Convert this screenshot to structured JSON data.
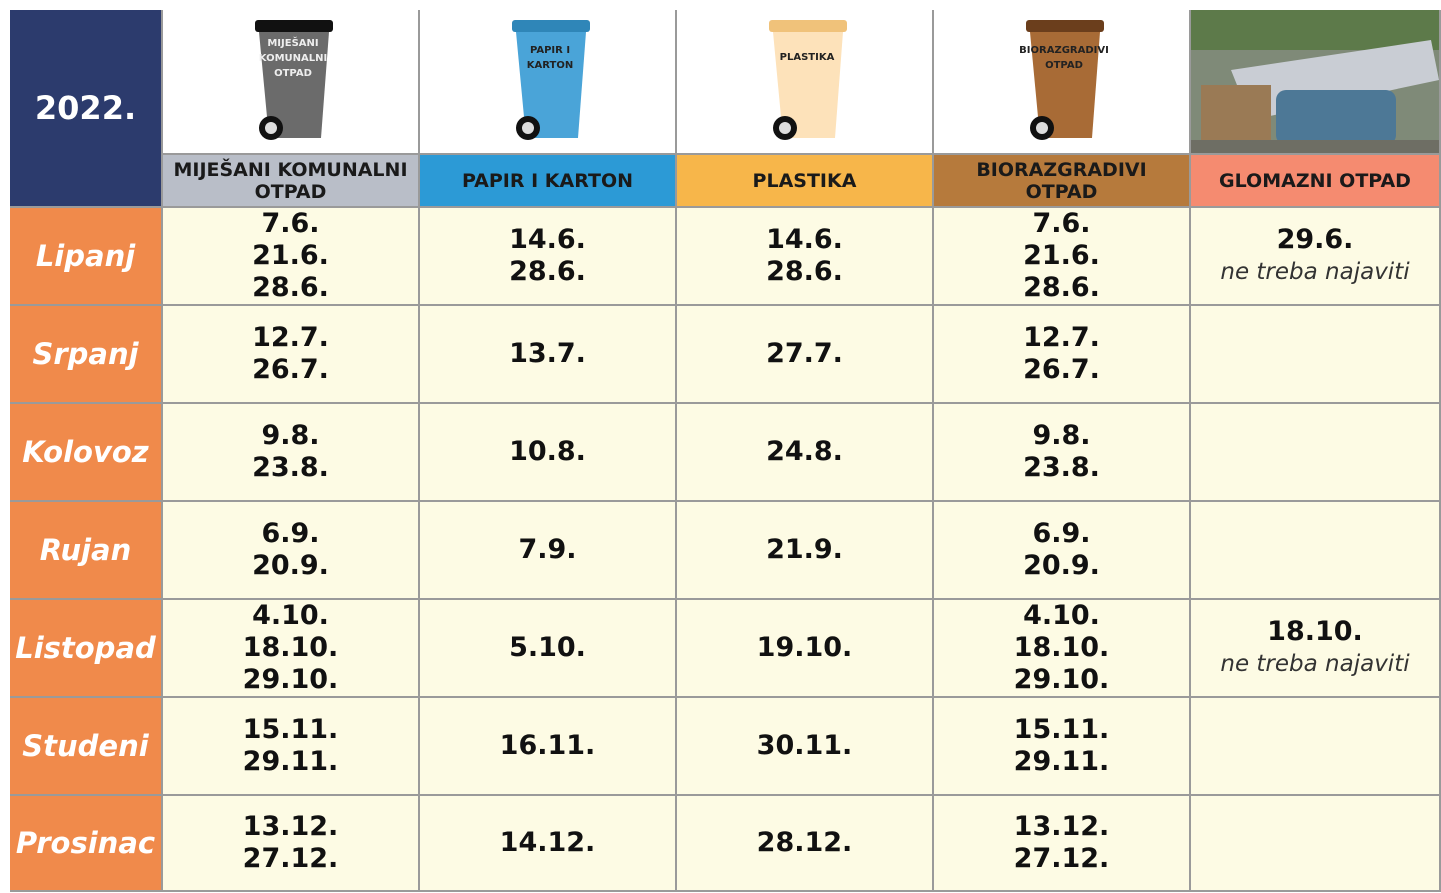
{
  "header": {
    "year": "2022."
  },
  "columns": [
    {
      "bin_label": [
        "MIJEŠANI",
        "KOMUNALNI",
        "OTPAD"
      ],
      "title": "MIJEŠANI KOMUNALNI OTPAD"
    },
    {
      "bin_label": [
        "PAPIR I",
        "KARTON"
      ],
      "title": "PAPIR I KARTON"
    },
    {
      "bin_label": [
        "PLASTIKA"
      ],
      "title": "PLASTIKA"
    },
    {
      "bin_label": [
        "BIORAZGRADIVI",
        "OTPAD"
      ],
      "title": "BIORAZGRADIVI OTPAD"
    },
    {
      "bin_label": null,
      "title": "GLOMAZNI OTPAD"
    }
  ],
  "rows": [
    {
      "month": "Lipanj",
      "cells": [
        [
          "7.6.",
          "21.6.",
          "28.6."
        ],
        [
          "14.6.",
          "28.6."
        ],
        [
          "14.6.",
          "28.6."
        ],
        [
          "7.6.",
          "21.6.",
          "28.6."
        ],
        {
          "date": "29.6.",
          "note": "ne treba najaviti"
        }
      ]
    },
    {
      "month": "Srpanj",
      "cells": [
        [
          "12.7.",
          "26.7."
        ],
        [
          "13.7."
        ],
        [
          "27.7."
        ],
        [
          "12.7.",
          "26.7."
        ],
        null
      ]
    },
    {
      "month": "Kolovoz",
      "cells": [
        [
          "9.8.",
          "23.8."
        ],
        [
          "10.8."
        ],
        [
          "24.8."
        ],
        [
          "9.8.",
          "23.8."
        ],
        null
      ]
    },
    {
      "month": "Rujan",
      "cells": [
        [
          "6.9.",
          "20.9."
        ],
        [
          "7.9."
        ],
        [
          "21.9."
        ],
        [
          "6.9.",
          "20.9."
        ],
        null
      ]
    },
    {
      "month": "Listopad",
      "cells": [
        [
          "4.10.",
          "18.10.",
          "29.10."
        ],
        [
          "5.10."
        ],
        [
          "19.10."
        ],
        [
          "4.10.",
          "18.10.",
          "29.10."
        ],
        {
          "date": "18.10.",
          "note": "ne treba najaviti"
        }
      ]
    },
    {
      "month": "Studeni",
      "cells": [
        [
          "15.11.",
          "29.11."
        ],
        [
          "16.11."
        ],
        [
          "30.11."
        ],
        [
          "15.11.",
          "29.11."
        ],
        null
      ]
    },
    {
      "month": "Prosinac",
      "cells": [
        [
          "13.12.",
          "27.12."
        ],
        [
          "14.12."
        ],
        [
          "28.12."
        ],
        [
          "13.12.",
          "27.12."
        ],
        null
      ]
    }
  ]
}
